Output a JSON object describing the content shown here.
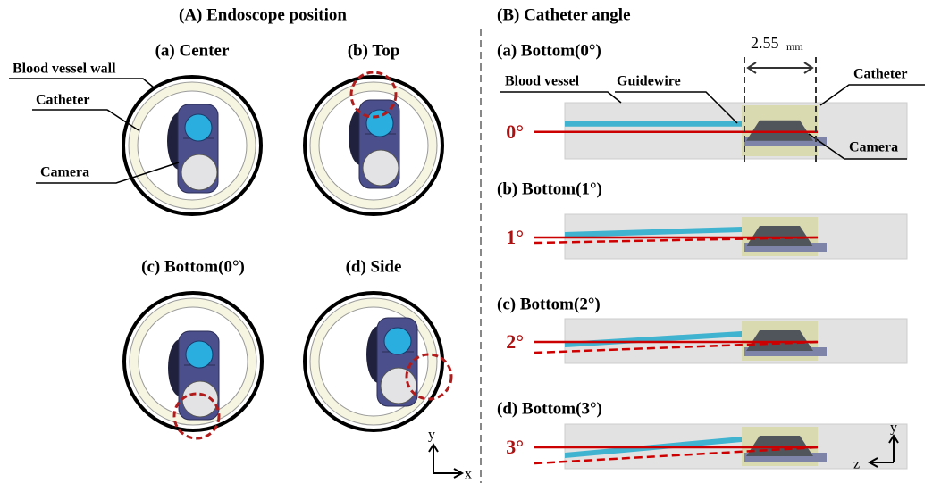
{
  "panel_a": {
    "title": "(A) Endoscope position",
    "views": [
      {
        "label": "(a) Center"
      },
      {
        "label": "(b) Top"
      },
      {
        "label": "(c) Bottom(0°)"
      },
      {
        "label": "(d) Side"
      }
    ],
    "callouts": {
      "vessel_wall": "Blood vessel wall",
      "catheter": "Catheter",
      "camera": "Camera"
    },
    "axes": {
      "y": "y",
      "x": "x"
    }
  },
  "panel_b": {
    "title": "(B) Catheter angle",
    "cases": [
      {
        "label": "(a) Bottom(0°)",
        "angle": "0°"
      },
      {
        "label": "(b) Bottom(1°)",
        "angle": "1°"
      },
      {
        "label": "(c) Bottom(2°)",
        "angle": "2°"
      },
      {
        "label": "(d) Bottom(3°)",
        "angle": "3°"
      }
    ],
    "callouts": {
      "vessel": "Blood vessel",
      "guidewire": "Guidewire",
      "catheter": "Catheter",
      "camera": "Camera"
    },
    "dimension": {
      "value": "2.55",
      "unit": "mm"
    },
    "axes": {
      "y": "y",
      "z": "z"
    }
  }
}
